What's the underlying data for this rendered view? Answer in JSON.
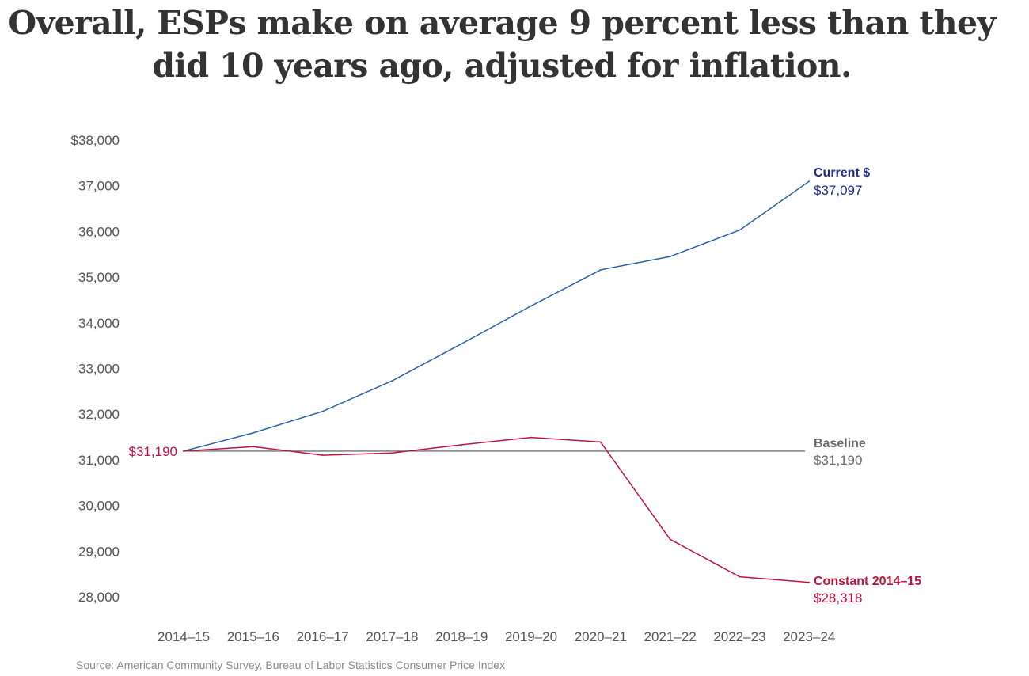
{
  "title": "Overall, ESPs make on average 9 percent less than they did 10 years ago, adjusted for inflation.",
  "source": "Source: American Community Survey, Bureau of Labor Statistics Consumer Price Index",
  "colors": {
    "current": "#2a63ad",
    "current_label": "#1f2e8c",
    "constant": "#c0143c",
    "baseline": "#555555",
    "baseline_label": "#6b6b6b",
    "axis_text": "#555555"
  },
  "chart_data": {
    "type": "line",
    "title": "Overall, ESPs make on average 9 percent less than they did 10 years ago, adjusted for inflation.",
    "xlabel": "",
    "ylabel": "",
    "categories": [
      "2014–15",
      "2015–16",
      "2016–17",
      "2017–18",
      "2018–19",
      "2019–20",
      "2020–21",
      "2021–22",
      "2022–23",
      "2023–24"
    ],
    "ylim": [
      27500,
      38000
    ],
    "y_ticks": [
      {
        "value": 38000,
        "label": "$38,000"
      },
      {
        "value": 37000,
        "label": "37,000"
      },
      {
        "value": 36000,
        "label": "36,000"
      },
      {
        "value": 35000,
        "label": "35,000"
      },
      {
        "value": 34000,
        "label": "34,000"
      },
      {
        "value": 33000,
        "label": "33,000"
      },
      {
        "value": 32000,
        "label": "32,000"
      },
      {
        "value": 31000,
        "label": "31,000"
      },
      {
        "value": 30000,
        "label": "30,000"
      },
      {
        "value": 29000,
        "label": "29,000"
      },
      {
        "value": 28000,
        "label": "28,000"
      }
    ],
    "grid": false,
    "series": [
      {
        "name": "Current $",
        "key": "current",
        "end_label": "$37,097",
        "values": [
          31190,
          31590,
          32060,
          32730,
          33540,
          34370,
          35160,
          35450,
          36030,
          37097
        ]
      },
      {
        "name": "Constant 2014–15",
        "key": "constant",
        "end_label": "$28,318",
        "start_label": "$31,190",
        "values": [
          31190,
          31290,
          31100,
          31150,
          31330,
          31490,
          31390,
          29260,
          28440,
          28318
        ]
      }
    ],
    "baseline": {
      "name": "Baseline",
      "value": 31190,
      "label": "$31,190"
    }
  }
}
